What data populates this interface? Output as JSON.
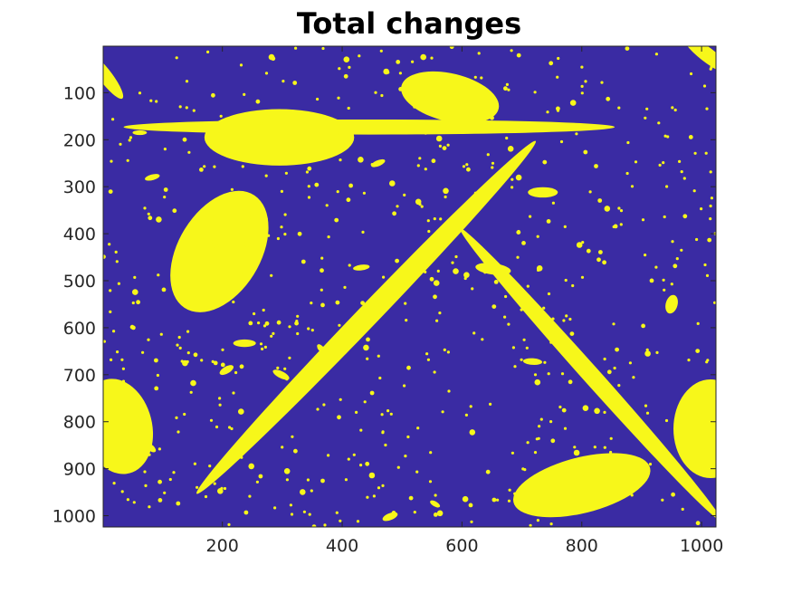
{
  "chart_data": {
    "type": "heatmap",
    "title": "Total changes",
    "xlabel": "",
    "ylabel": "",
    "xlim": [
      1,
      1024
    ],
    "ylim": [
      1,
      1024
    ],
    "y_reversed": true,
    "x_ticks": [
      200,
      400,
      600,
      800,
      1000
    ],
    "y_ticks": [
      100,
      200,
      300,
      400,
      500,
      600,
      700,
      800,
      900,
      1000
    ],
    "x_tick_labels": [
      "200",
      "400",
      "600",
      "800",
      "1000"
    ],
    "y_tick_labels": [
      "100",
      "200",
      "300",
      "400",
      "500",
      "600",
      "700",
      "800",
      "900",
      "1000"
    ],
    "colors": {
      "background": "#3a2ba3",
      "change": "#f7f71a",
      "axis": "#262626"
    },
    "regions": [
      {
        "kind": "ellipse",
        "cx": 295,
        "cy": 195,
        "rx": 125,
        "ry": 60,
        "angle": 0
      },
      {
        "kind": "ellipse",
        "cx": 580,
        "cy": 110,
        "rx": 85,
        "ry": 50,
        "angle": 20
      },
      {
        "kind": "ellipse",
        "cx": 445,
        "cy": 173,
        "rx": 410,
        "ry": 16,
        "angle": 0
      },
      {
        "kind": "ellipse",
        "cx": 195,
        "cy": 438,
        "rx": 72,
        "ry": 135,
        "angle": 20
      },
      {
        "kind": "ellipse",
        "cx": 440,
        "cy": 578,
        "rx": 470,
        "ry": 20,
        "angle": -53
      },
      {
        "kind": "ellipse",
        "cx": 815,
        "cy": 700,
        "rx": 380,
        "ry": 16,
        "angle": 55
      },
      {
        "kind": "ellipse",
        "cx": 800,
        "cy": 935,
        "rx": 120,
        "ry": 58,
        "angle": -20
      },
      {
        "kind": "ellipse",
        "cx": 25,
        "cy": 810,
        "rx": 58,
        "ry": 102,
        "angle": -8
      },
      {
        "kind": "ellipse",
        "cx": 1015,
        "cy": 815,
        "rx": 62,
        "ry": 105,
        "angle": 0
      },
      {
        "kind": "ellipse",
        "cx": 1010,
        "cy": 20,
        "rx": 55,
        "ry": 14,
        "angle": 45
      },
      {
        "kind": "ellipse",
        "cx": 5,
        "cy": 65,
        "rx": 55,
        "ry": 12,
        "angle": 60
      },
      {
        "kind": "ellipse",
        "cx": 652,
        "cy": 475,
        "rx": 30,
        "ry": 12,
        "angle": 10
      },
      {
        "kind": "ellipse",
        "cx": 735,
        "cy": 312,
        "rx": 25,
        "ry": 11,
        "angle": 0
      },
      {
        "kind": "ellipse",
        "cx": 237,
        "cy": 633,
        "rx": 19,
        "ry": 8,
        "angle": 0
      },
      {
        "kind": "ellipse",
        "cx": 298,
        "cy": 700,
        "rx": 16,
        "ry": 7,
        "angle": 35
      },
      {
        "kind": "ellipse",
        "cx": 207,
        "cy": 690,
        "rx": 14,
        "ry": 7,
        "angle": -40
      },
      {
        "kind": "ellipse",
        "cx": 718,
        "cy": 672,
        "rx": 16,
        "ry": 7,
        "angle": 5
      },
      {
        "kind": "ellipse",
        "cx": 950,
        "cy": 550,
        "rx": 10,
        "ry": 20,
        "angle": 10
      },
      {
        "kind": "ellipse",
        "cx": 432,
        "cy": 472,
        "rx": 14,
        "ry": 6,
        "angle": -10
      },
      {
        "kind": "ellipse",
        "cx": 480,
        "cy": 1002,
        "rx": 14,
        "ry": 7,
        "angle": -30
      },
      {
        "kind": "ellipse",
        "cx": 83,
        "cy": 280,
        "rx": 13,
        "ry": 6,
        "angle": -20
      },
      {
        "kind": "ellipse",
        "cx": 460,
        "cy": 250,
        "rx": 13,
        "ry": 6,
        "angle": -30
      },
      {
        "kind": "ellipse",
        "cx": 80,
        "cy": 855,
        "rx": 12,
        "ry": 6,
        "angle": 50
      },
      {
        "kind": "ellipse",
        "cx": 365,
        "cy": 645,
        "rx": 11,
        "ry": 5,
        "angle": 60
      },
      {
        "kind": "ellipse",
        "cx": 555,
        "cy": 975,
        "rx": 10,
        "ry": 5,
        "angle": 40
      },
      {
        "kind": "ellipse",
        "cx": 62,
        "cy": 185,
        "rx": 12,
        "ry": 5,
        "angle": 0
      }
    ]
  }
}
